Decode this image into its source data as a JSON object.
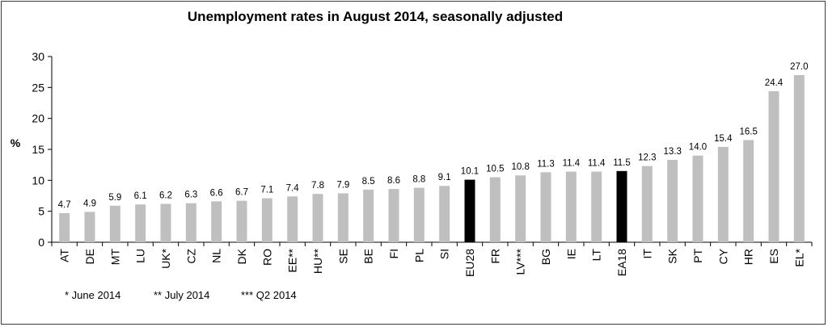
{
  "chart_data": {
    "type": "bar",
    "title": "Unemployment rates in August 2014, seasonally adjusted",
    "ylabel": "%",
    "xlabel": "",
    "ylim": [
      0,
      30
    ],
    "yticks": [
      0,
      5,
      10,
      15,
      20,
      25,
      30
    ],
    "categories": [
      "AT",
      "DE",
      "MT",
      "LU",
      "UK*",
      "CZ",
      "NL",
      "DK",
      "RO",
      "EE**",
      "HU**",
      "SE",
      "BE",
      "FI",
      "PL",
      "SI",
      "EU28",
      "FR",
      "LV***",
      "BG",
      "IE",
      "LT",
      "EA18",
      "IT",
      "SK",
      "PT",
      "CY",
      "HR",
      "ES",
      "EL*"
    ],
    "values": [
      4.7,
      4.9,
      5.9,
      6.1,
      6.2,
      6.3,
      6.6,
      6.7,
      7.1,
      7.4,
      7.8,
      7.9,
      8.5,
      8.6,
      8.8,
      9.1,
      10.1,
      10.5,
      10.8,
      11.3,
      11.4,
      11.4,
      11.5,
      12.3,
      13.3,
      14.0,
      15.4,
      16.5,
      24.4,
      27.0
    ],
    "value_labels": [
      "4.7",
      "4.9",
      "5.9",
      "6.1",
      "6.2",
      "6.3",
      "6.6",
      "6.7",
      "7.1",
      "7.4",
      "7.8",
      "7.9",
      "8.5",
      "8.6",
      "8.8",
      "9.1",
      "10.1",
      "10.5",
      "10.8",
      "11.3",
      "11.4",
      "11.4",
      "11.5",
      "12.3",
      "13.3",
      "14.0",
      "15.4",
      "16.5",
      "24.4",
      "27.0"
    ],
    "highlight": [
      "EU28",
      "EA18"
    ],
    "bar_color": "#bfbfbf",
    "highlight_color": "#000000",
    "grid": false,
    "footnotes": [
      "* June 2014",
      "** July 2014",
      "*** Q2 2014"
    ]
  }
}
